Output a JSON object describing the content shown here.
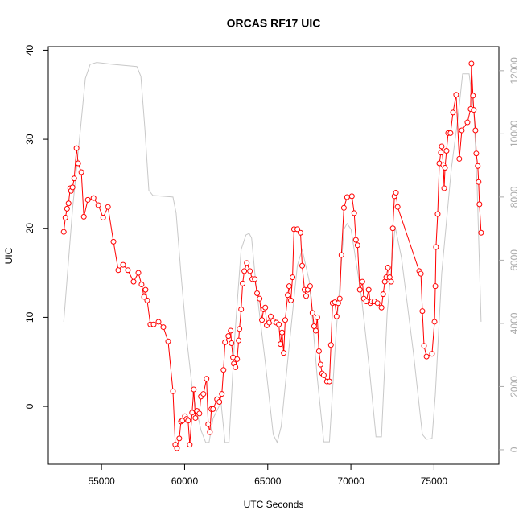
{
  "chart_data": {
    "type": "line",
    "title": "ORCAS RF17 UIC",
    "x_label": "UTC Seconds",
    "y_label": "UIC",
    "xlim": [
      51800,
      78900
    ],
    "xticks": [
      55000,
      60000,
      65000,
      70000,
      75000
    ],
    "ylim": [
      -6.5,
      40.4
    ],
    "yticks": [
      0,
      10,
      20,
      30,
      40
    ],
    "y2lim": [
      -460,
      12760
    ],
    "y2ticks": [
      0,
      2000,
      4000,
      6000,
      8000,
      10000,
      12000
    ],
    "series": [
      {
        "color": "#ff0000",
        "markers": true,
        "x": [
          52730,
          52830,
          52930,
          53020,
          53120,
          53170,
          53260,
          53360,
          53500,
          53600,
          53790,
          53940,
          54180,
          54520,
          54810,
          55100,
          55390,
          55720,
          56010,
          56300,
          56590,
          56930,
          57220,
          57410,
          57560,
          57650,
          57750,
          57940,
          58140,
          58430,
          58720,
          59010,
          59300,
          59440,
          59540,
          59680,
          59780,
          59870,
          60020,
          60120,
          60210,
          60310,
          60450,
          60550,
          60650,
          60740,
          60890,
          60980,
          61130,
          61320,
          61420,
          61520,
          61610,
          61710,
          61950,
          62090,
          62240,
          62340,
          62430,
          62630,
          62770,
          62820,
          62910,
          62960,
          63060,
          63160,
          63250,
          63300,
          63400,
          63490,
          63590,
          63740,
          63930,
          64070,
          64220,
          64360,
          64510,
          64650,
          64750,
          64850,
          64940,
          65090,
          65180,
          65330,
          65520,
          65670,
          65760,
          65860,
          65960,
          66050,
          66200,
          66290,
          66390,
          66490,
          66580,
          66780,
          66970,
          67070,
          67210,
          67310,
          67400,
          67550,
          67690,
          67790,
          67890,
          67980,
          68080,
          68180,
          68270,
          68370,
          68560,
          68710,
          68800,
          68900,
          69040,
          69140,
          69240,
          69330,
          69430,
          69580,
          69770,
          70060,
          70200,
          70300,
          70400,
          70540,
          70690,
          70780,
          70930,
          71070,
          71170,
          71260,
          71410,
          71600,
          71840,
          71940,
          72040,
          72130,
          72230,
          72330,
          72420,
          72520,
          72620,
          72710,
          72810,
          74110,
          74210,
          74300,
          74400,
          74550,
          74880,
          75030,
          75080,
          75120,
          75220,
          75320,
          75410,
          75460,
          75560,
          75610,
          75660,
          75750,
          75850,
          75990,
          76140,
          76330,
          76520,
          76670,
          77010,
          77200,
          77250,
          77340,
          77390,
          77490,
          77540,
          77630,
          77680,
          77730,
          77830
        ],
        "values": [
          19.6,
          21.2,
          22.2,
          22.8,
          24.5,
          24.2,
          24.6,
          25.6,
          29.0,
          27.3,
          26.3,
          21.3,
          23.2,
          23.4,
          22.6,
          21.2,
          22.4,
          18.5,
          15.3,
          15.9,
          15.3,
          14.0,
          15.0,
          13.7,
          12.3,
          13.1,
          11.9,
          9.2,
          9.2,
          9.5,
          8.9,
          7.3,
          1.7,
          -4.3,
          -4.7,
          -3.6,
          -1.7,
          -1.6,
          -1.1,
          -1.4,
          -1.6,
          -4.3,
          -0.7,
          1.9,
          -1.3,
          -0.5,
          -0.8,
          1.1,
          1.4,
          3.1,
          -2.0,
          -2.9,
          -0.3,
          -0.3,
          0.8,
          0.5,
          1.4,
          4.1,
          7.2,
          7.9,
          8.5,
          7.1,
          5.5,
          4.8,
          4.4,
          5.3,
          7.4,
          8.7,
          10.9,
          13.8,
          15.2,
          16.1,
          15.2,
          14.3,
          14.3,
          12.7,
          12.1,
          9.7,
          10.9,
          11.1,
          9.1,
          9.4,
          10.1,
          9.6,
          9.4,
          9.2,
          7.0,
          8.3,
          6.0,
          9.7,
          12.5,
          13.5,
          11.9,
          14.5,
          19.9,
          19.9,
          19.5,
          15.8,
          13.1,
          12.4,
          13.1,
          13.5,
          10.5,
          9.0,
          8.5,
          10.0,
          6.2,
          4.7,
          3.7,
          3.5,
          2.8,
          2.8,
          6.9,
          11.6,
          11.7,
          10.1,
          11.6,
          12.1,
          17.0,
          22.3,
          23.5,
          23.6,
          21.7,
          18.7,
          18.1,
          13.1,
          14.0,
          12.1,
          11.8,
          13.1,
          11.6,
          11.8,
          11.8,
          11.6,
          11.1,
          12.6,
          14.0,
          14.5,
          15.6,
          14.5,
          14.0,
          20.0,
          23.6,
          24.0,
          22.4,
          15.2,
          14.9,
          10.7,
          6.8,
          5.6,
          5.9,
          9.5,
          13.5,
          17.9,
          21.6,
          27.3,
          28.5,
          29.2,
          27.1,
          24.5,
          26.8,
          28.7,
          30.7,
          30.7,
          33.0,
          35.0,
          27.8,
          31.0,
          31.9,
          33.4,
          38.5,
          34.9,
          33.3,
          31.0,
          28.4,
          27.0,
          25.2,
          22.7,
          19.5
        ]
      },
      {
        "color": "#c8c8c8",
        "axis": "y2",
        "markers": false,
        "x": [
          52730,
          53260,
          53740,
          54030,
          54320,
          54710,
          55680,
          57130,
          57370,
          57610,
          57850,
          58090,
          59300,
          59490,
          59780,
          60120,
          60500,
          60990,
          61270,
          61470,
          61710,
          62190,
          62430,
          62670,
          63010,
          63400,
          63690,
          63880,
          64030,
          64270,
          64850,
          65330,
          65570,
          65810,
          66290,
          66780,
          67070,
          67500,
          67980,
          68370,
          68710,
          69090,
          69580,
          69770,
          70010,
          70640,
          71120,
          71510,
          71840,
          72180,
          72660,
          73040,
          73770,
          74300,
          74540,
          74880,
          75080,
          75460,
          76040,
          76430,
          76720,
          77110,
          77400,
          77590,
          77830
        ],
        "values": [
          4050,
          7620,
          10170,
          11750,
          12200,
          12260,
          12200,
          12130,
          11820,
          10170,
          8210,
          8050,
          8000,
          7490,
          5580,
          3540,
          1760,
          610,
          230,
          230,
          990,
          1500,
          230,
          230,
          3540,
          6340,
          6800,
          6850,
          6700,
          5330,
          2780,
          480,
          230,
          740,
          3290,
          5830,
          6340,
          5330,
          2270,
          250,
          250,
          3540,
          6980,
          7160,
          6980,
          4820,
          2520,
          410,
          410,
          4310,
          7060,
          6090,
          3030,
          480,
          330,
          360,
          1760,
          5580,
          8890,
          10470,
          11900,
          11900,
          10680,
          8380,
          4050
        ]
      }
    ]
  }
}
